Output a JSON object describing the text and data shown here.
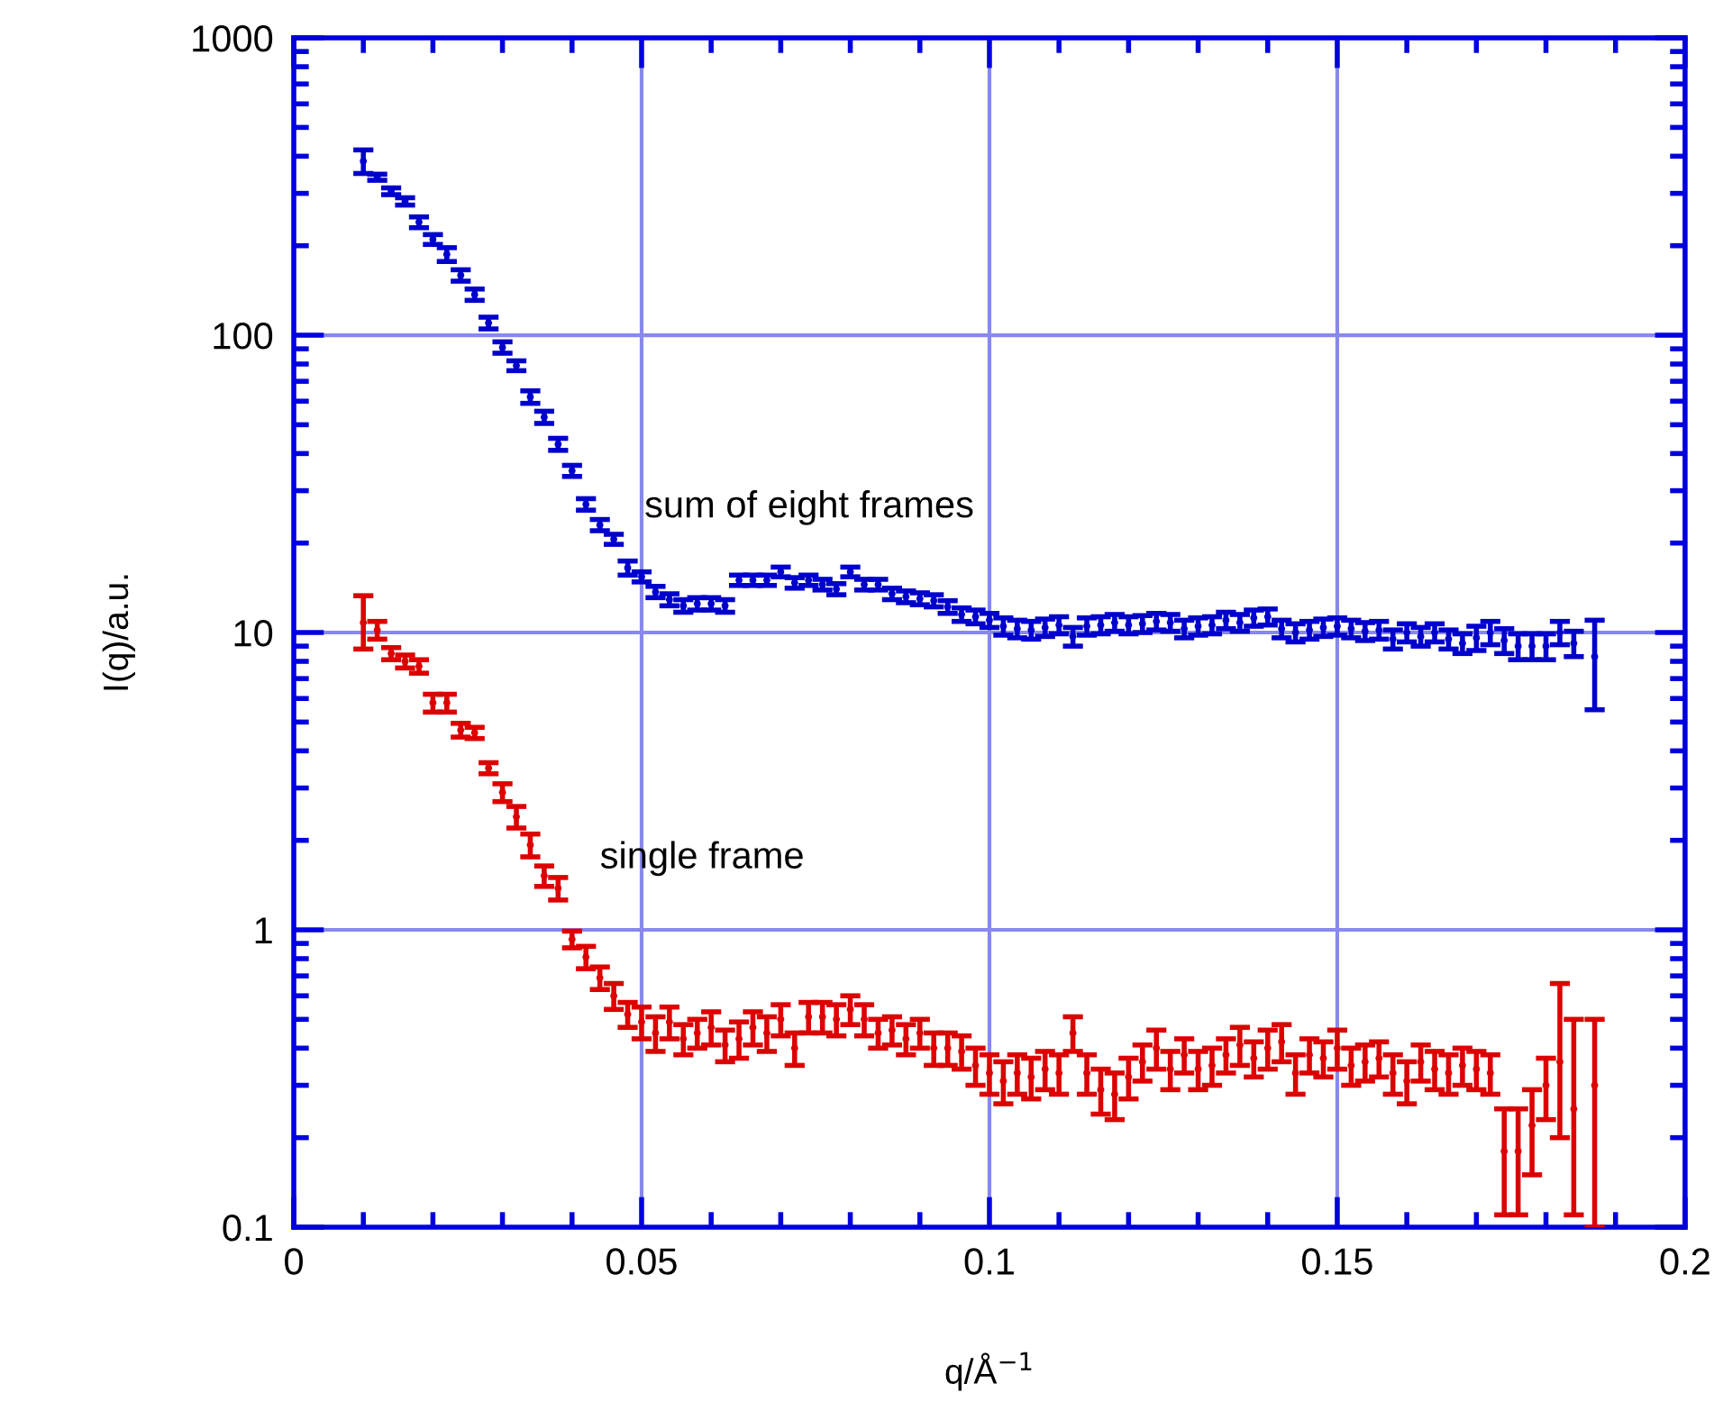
{
  "chart_data": {
    "type": "scatter",
    "xlabel": "q/Å$^{−1}$",
    "ylabel": "I(q)/a.u.",
    "log": "y",
    "grid": true,
    "xlim": [
      0,
      0.2
    ],
    "xticks": [
      0,
      0.05,
      0.1,
      0.15,
      0.2
    ],
    "ylim": [
      0.1,
      1000
    ],
    "yticks": [
      0.1,
      1,
      10,
      100,
      1000
    ],
    "marker": "circle",
    "series": [
      {
        "color": "#0000cc",
        "x": [
          0.01,
          0.012,
          0.014,
          0.016,
          0.018,
          0.02,
          0.022,
          0.024,
          0.026,
          0.028,
          0.03,
          0.032,
          0.034,
          0.036,
          0.038,
          0.04,
          0.042,
          0.044,
          0.046,
          0.048,
          0.05,
          0.052,
          0.054,
          0.056,
          0.058,
          0.06,
          0.062,
          0.064,
          0.066,
          0.068,
          0.07,
          0.072,
          0.074,
          0.076,
          0.078,
          0.08,
          0.082,
          0.084,
          0.086,
          0.088,
          0.09,
          0.092,
          0.094,
          0.096,
          0.098,
          0.1,
          0.102,
          0.104,
          0.106,
          0.108,
          0.11,
          0.112,
          0.114,
          0.116,
          0.118,
          0.12,
          0.122,
          0.124,
          0.126,
          0.128,
          0.13,
          0.132,
          0.134,
          0.136,
          0.138,
          0.14,
          0.142,
          0.144,
          0.146,
          0.148,
          0.15,
          0.152,
          0.154,
          0.156,
          0.158,
          0.16,
          0.162,
          0.164,
          0.166,
          0.168,
          0.17,
          0.172,
          0.174,
          0.176,
          0.178,
          0.18,
          0.182,
          0.184,
          0.187
        ],
        "values": [
          385,
          340,
          305,
          282,
          240,
          210,
          187,
          159,
          137,
          110,
          91,
          79,
          62,
          53,
          43,
          35,
          27,
          23,
          20.6,
          16.5,
          15.4,
          13.7,
          12.9,
          12.3,
          12.5,
          12.5,
          12.3,
          15,
          15,
          15,
          16,
          14.7,
          15,
          14.5,
          14,
          16,
          14.5,
          14.5,
          13.5,
          13.2,
          13,
          12.8,
          12.2,
          11.5,
          11.3,
          11.0,
          10.5,
          10.3,
          10.2,
          10.4,
          10.6,
          9.7,
          10.5,
          10.6,
          10.8,
          10.6,
          10.7,
          10.9,
          10.8,
          10.3,
          10.5,
          10.6,
          11.0,
          10.8,
          11.2,
          11.3,
          10.3,
          10.0,
          10.2,
          10.4,
          10.5,
          10.3,
          10.1,
          10.2,
          9.5,
          10.0,
          9.7,
          10.0,
          9.5,
          9.2,
          9.6,
          10.0,
          9.4,
          9.0,
          9.0,
          9.0,
          10.0,
          9.2,
          8.3
        ],
        "errors": [
          35,
          8,
          8,
          8,
          10,
          8,
          10,
          7,
          6,
          5,
          4,
          3,
          3,
          2.5,
          2,
          1.5,
          1.2,
          1,
          0.8,
          0.9,
          0.6,
          0.6,
          0.6,
          0.6,
          0.6,
          0.6,
          0.6,
          0.6,
          0.6,
          0.6,
          0.6,
          0.6,
          0.6,
          0.6,
          0.6,
          0.6,
          0.6,
          0.6,
          0.6,
          0.6,
          0.6,
          0.6,
          0.6,
          0.6,
          0.6,
          0.6,
          0.7,
          0.7,
          0.7,
          0.7,
          0.7,
          0.7,
          0.7,
          0.7,
          0.7,
          0.7,
          0.7,
          0.7,
          0.7,
          0.7,
          0.7,
          0.7,
          0.7,
          0.7,
          0.7,
          0.7,
          0.7,
          0.7,
          0.7,
          0.7,
          0.7,
          0.7,
          0.7,
          0.7,
          0.7,
          0.7,
          0.7,
          0.7,
          0.7,
          0.7,
          0.9,
          0.9,
          0.9,
          0.9,
          0.9,
          0.9,
          0.9,
          0.9,
          [
            5.5,
            11
          ]
        ]
      },
      {
        "color": "#dd0000",
        "x": [
          0.01,
          0.012,
          0.014,
          0.016,
          0.018,
          0.02,
          0.022,
          0.024,
          0.026,
          0.028,
          0.03,
          0.032,
          0.034,
          0.036,
          0.038,
          0.04,
          0.042,
          0.044,
          0.046,
          0.048,
          0.05,
          0.052,
          0.054,
          0.056,
          0.058,
          0.06,
          0.062,
          0.064,
          0.066,
          0.068,
          0.07,
          0.072,
          0.074,
          0.076,
          0.078,
          0.08,
          0.082,
          0.084,
          0.086,
          0.088,
          0.09,
          0.092,
          0.094,
          0.096,
          0.098,
          0.1,
          0.102,
          0.104,
          0.106,
          0.108,
          0.11,
          0.112,
          0.114,
          0.116,
          0.118,
          0.12,
          0.122,
          0.124,
          0.126,
          0.128,
          0.13,
          0.132,
          0.134,
          0.136,
          0.138,
          0.14,
          0.142,
          0.144,
          0.146,
          0.148,
          0.15,
          0.152,
          0.154,
          0.156,
          0.158,
          0.16,
          0.162,
          0.164,
          0.166,
          0.168,
          0.17,
          0.172,
          0.174,
          0.176,
          0.178,
          0.18,
          0.182,
          0.184,
          0.187
        ],
        "values": [
          10.8,
          10.2,
          8.5,
          8.0,
          7.7,
          5.8,
          5.8,
          4.7,
          4.6,
          3.5,
          2.9,
          2.4,
          1.93,
          1.52,
          1.38,
          0.93,
          0.81,
          0.69,
          0.6,
          0.52,
          0.49,
          0.45,
          0.49,
          0.43,
          0.45,
          0.47,
          0.41,
          0.43,
          0.47,
          0.45,
          0.5,
          0.4,
          0.51,
          0.51,
          0.5,
          0.54,
          0.5,
          0.45,
          0.46,
          0.43,
          0.45,
          0.4,
          0.4,
          0.39,
          0.35,
          0.33,
          0.31,
          0.33,
          0.32,
          0.34,
          0.33,
          0.45,
          0.33,
          0.29,
          0.28,
          0.32,
          0.36,
          0.4,
          0.34,
          0.38,
          0.34,
          0.35,
          0.38,
          0.41,
          0.37,
          0.4,
          0.42,
          0.33,
          0.38,
          0.37,
          0.4,
          0.35,
          0.36,
          0.37,
          0.33,
          0.31,
          0.36,
          0.34,
          0.33,
          0.35,
          0.34,
          0.33,
          0.18,
          0.18,
          0.22,
          0.3,
          0.36,
          0.25,
          0.3
        ],
        "errors": [
          [
            8.8,
            13.3
          ],
          0.7,
          0.4,
          0.4,
          0.4,
          0.4,
          0.4,
          0.25,
          0.2,
          0.15,
          0.2,
          0.2,
          0.17,
          0.12,
          0.12,
          0.06,
          0.07,
          0.06,
          0.06,
          0.05,
          0.06,
          0.06,
          0.06,
          0.05,
          0.05,
          0.06,
          0.05,
          0.06,
          0.06,
          0.06,
          0.06,
          0.05,
          0.06,
          0.06,
          0.06,
          0.06,
          0.06,
          0.05,
          0.05,
          0.05,
          0.05,
          0.05,
          0.05,
          0.05,
          0.05,
          0.05,
          0.05,
          0.05,
          0.05,
          0.05,
          0.05,
          0.06,
          0.05,
          0.05,
          0.05,
          0.05,
          0.05,
          0.06,
          0.05,
          0.05,
          0.05,
          0.05,
          0.05,
          0.06,
          0.05,
          0.06,
          0.06,
          0.05,
          0.05,
          0.05,
          0.06,
          0.05,
          0.05,
          0.05,
          0.05,
          0.05,
          0.05,
          0.05,
          0.05,
          0.05,
          0.05,
          0.05,
          0.07,
          0.07,
          0.07,
          0.07,
          [
            0.2,
            0.66
          ],
          [
            0.11,
            0.5
          ],
          [
            0.1,
            0.5
          ]
        ]
      }
    ],
    "annotations": [
      "sum of eight frames",
      "single frame"
    ]
  }
}
